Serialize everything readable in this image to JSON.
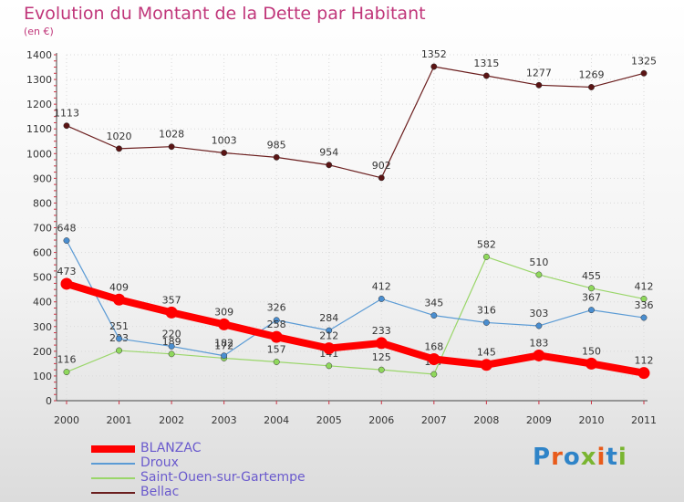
{
  "title": "Evolution du Montant de la Dette par Habitant",
  "subtitle": "(en €)",
  "logo": {
    "text": "Proxiti",
    "colors": [
      "#2f84c8",
      "#e85b1b",
      "#2f84c8",
      "#7ab531",
      "#e85b1b",
      "#2f84c8",
      "#7ab531"
    ]
  },
  "chart_data": {
    "type": "line",
    "x": [
      "2000",
      "2001",
      "2002",
      "2003",
      "2004",
      "2005",
      "2006",
      "2007",
      "2008",
      "2009",
      "2010",
      "2011"
    ],
    "ylim": [
      0,
      1400
    ],
    "yticks": [
      0,
      100,
      200,
      300,
      400,
      500,
      600,
      700,
      800,
      900,
      1000,
      1100,
      1200,
      1300,
      1400
    ],
    "grid": true,
    "legend_position": "bottom-left",
    "series": [
      {
        "name": "Bellac",
        "color": "#6b1e1e",
        "dot": "#5a1414",
        "width": 1.2,
        "values": [
          1113,
          1020,
          1028,
          1003,
          985,
          954,
          902,
          1352,
          1315,
          1277,
          1269,
          1325
        ],
        "labels": [
          "1113",
          "1020",
          "1028",
          "1003",
          "985",
          "954",
          "902",
          "1352",
          "1315",
          "1277",
          "1269",
          "1325"
        ]
      },
      {
        "name": "Saint-Ouen-sur-Gartempe",
        "color": "#9ad66a",
        "dot": "#8fd85c",
        "width": 1.2,
        "values": [
          116,
          203,
          189,
          172,
          157,
          141,
          125,
          107,
          582,
          510,
          455,
          412
        ],
        "labels": [
          "116",
          "203",
          "189",
          "172",
          "157",
          "141",
          "125",
          "107",
          "582",
          "510",
          "455",
          "412"
        ]
      },
      {
        "name": "Droux",
        "color": "#5b9bd5",
        "dot": "#4a8ed0",
        "width": 1.2,
        "values": [
          648,
          251,
          220,
          182,
          326,
          284,
          412,
          345,
          316,
          303,
          367,
          336
        ],
        "labels": [
          "648",
          "251",
          "220",
          "182",
          "326",
          "284",
          "412",
          "345",
          "316",
          "303",
          "367",
          "336"
        ]
      },
      {
        "name": "BLANZAC",
        "color": "#ff0000",
        "dot": "#ff0000",
        "width": 8,
        "values": [
          473,
          409,
          357,
          309,
          258,
          212,
          233,
          168,
          145,
          183,
          150,
          112
        ],
        "labels": [
          "473",
          "409",
          "357",
          "309",
          "258",
          "212",
          "233",
          "168",
          "145",
          "183",
          "150",
          "112"
        ]
      }
    ],
    "legend": [
      "BLANZAC",
      "Droux",
      "Saint-Ouen-sur-Gartempe",
      "Bellac"
    ]
  }
}
